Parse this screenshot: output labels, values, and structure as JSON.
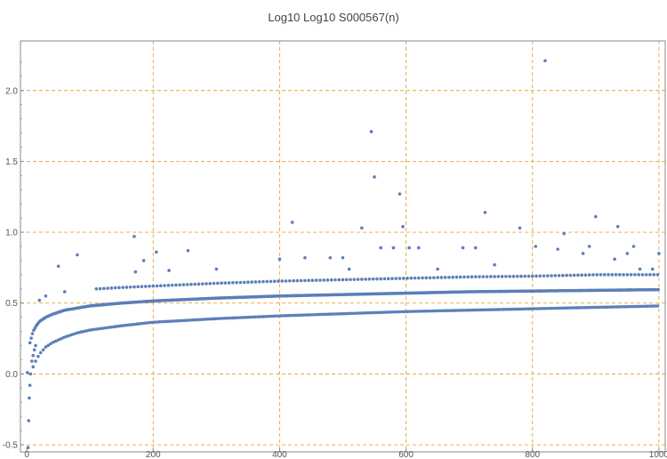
{
  "chart_data": {
    "type": "scatter",
    "title": "Log10 Log10 S000567(n)",
    "xlabel": "",
    "ylabel": "",
    "xlim": [
      -10,
      1010
    ],
    "ylim": [
      -0.55,
      2.35
    ],
    "x_ticks": [
      0,
      200,
      400,
      600,
      800,
      1000
    ],
    "x_tick_labels": [
      "0",
      "200",
      "400",
      "600",
      "800",
      "1000"
    ],
    "y_ticks": [
      -0.5,
      0.0,
      0.5,
      1.0,
      1.5,
      2.0
    ],
    "y_tick_labels": [
      "-0.5",
      "0.0",
      "0.5",
      "1.0",
      "1.5",
      "2.0"
    ],
    "grid": true,
    "grid_color": "#E8A33D",
    "point_color": "#5B7FB9",
    "axis_color": "#888888",
    "series": [
      {
        "bands": [
          {
            "points": [
              [
                5,
                0.22
              ],
              [
                10,
                0.3
              ],
              [
                15,
                0.34
              ],
              [
                20,
                0.37
              ],
              [
                30,
                0.4
              ],
              [
                40,
                0.42
              ],
              [
                60,
                0.45
              ],
              [
                80,
                0.465
              ],
              [
                100,
                0.48
              ],
              [
                150,
                0.5
              ],
              [
                200,
                0.515
              ],
              [
                300,
                0.535
              ],
              [
                400,
                0.55
              ],
              [
                500,
                0.56
              ],
              [
                600,
                0.57
              ],
              [
                700,
                0.58
              ],
              [
                800,
                0.585
              ],
              [
                900,
                0.59
              ],
              [
                1000,
                0.595
              ]
            ],
            "step": 2
          },
          {
            "points": [
              [
                10,
                0.05
              ],
              [
                15,
                0.1
              ],
              [
                20,
                0.14
              ],
              [
                30,
                0.19
              ],
              [
                40,
                0.22
              ],
              [
                60,
                0.26
              ],
              [
                80,
                0.29
              ],
              [
                100,
                0.31
              ],
              [
                150,
                0.34
              ],
              [
                200,
                0.365
              ],
              [
                300,
                0.39
              ],
              [
                400,
                0.41
              ],
              [
                500,
                0.425
              ],
              [
                600,
                0.44
              ],
              [
                700,
                0.45
              ],
              [
                800,
                0.46
              ],
              [
                900,
                0.47
              ],
              [
                1000,
                0.48
              ]
            ],
            "step": 4
          },
          {
            "points": [
              [
                110,
                0.6
              ],
              [
                150,
                0.61
              ],
              [
                200,
                0.62
              ],
              [
                300,
                0.64
              ],
              [
                400,
                0.655
              ],
              [
                500,
                0.665
              ],
              [
                600,
                0.675
              ],
              [
                700,
                0.685
              ],
              [
                800,
                0.69
              ],
              [
                900,
                0.7
              ],
              [
                1000,
                0.7
              ]
            ],
            "step": 6
          }
        ],
        "points": [
          [
            1,
            0.01
          ],
          [
            2,
            -0.52
          ],
          [
            3,
            -0.33
          ],
          [
            4,
            -0.17
          ],
          [
            5,
            -0.08
          ],
          [
            6,
            0.0
          ],
          [
            8,
            0.09
          ],
          [
            10,
            0.13
          ],
          [
            12,
            0.17
          ],
          [
            14,
            0.2
          ],
          [
            20,
            0.52
          ],
          [
            30,
            0.55
          ],
          [
            50,
            0.76
          ],
          [
            60,
            0.58
          ],
          [
            80,
            0.84
          ],
          [
            170,
            0.97
          ],
          [
            172,
            0.72
          ],
          [
            185,
            0.8
          ],
          [
            205,
            0.86
          ],
          [
            225,
            0.73
          ],
          [
            255,
            0.87
          ],
          [
            300,
            0.74
          ],
          [
            400,
            0.81
          ],
          [
            420,
            1.07
          ],
          [
            440,
            0.82
          ],
          [
            480,
            0.82
          ],
          [
            500,
            0.82
          ],
          [
            510,
            0.74
          ],
          [
            530,
            1.03
          ],
          [
            545,
            1.71
          ],
          [
            550,
            1.39
          ],
          [
            560,
            0.89
          ],
          [
            580,
            0.89
          ],
          [
            590,
            1.27
          ],
          [
            595,
            1.04
          ],
          [
            605,
            0.89
          ],
          [
            620,
            0.89
          ],
          [
            650,
            0.74
          ],
          [
            690,
            0.89
          ],
          [
            710,
            0.89
          ],
          [
            725,
            1.14
          ],
          [
            740,
            0.77
          ],
          [
            780,
            1.03
          ],
          [
            805,
            0.9
          ],
          [
            820,
            2.21
          ],
          [
            840,
            0.88
          ],
          [
            850,
            0.99
          ],
          [
            880,
            0.85
          ],
          [
            890,
            0.9
          ],
          [
            900,
            1.11
          ],
          [
            930,
            0.81
          ],
          [
            935,
            1.04
          ],
          [
            950,
            0.85
          ],
          [
            960,
            0.9
          ],
          [
            970,
            0.74
          ],
          [
            990,
            0.74
          ],
          [
            1000,
            0.85
          ]
        ]
      }
    ]
  }
}
